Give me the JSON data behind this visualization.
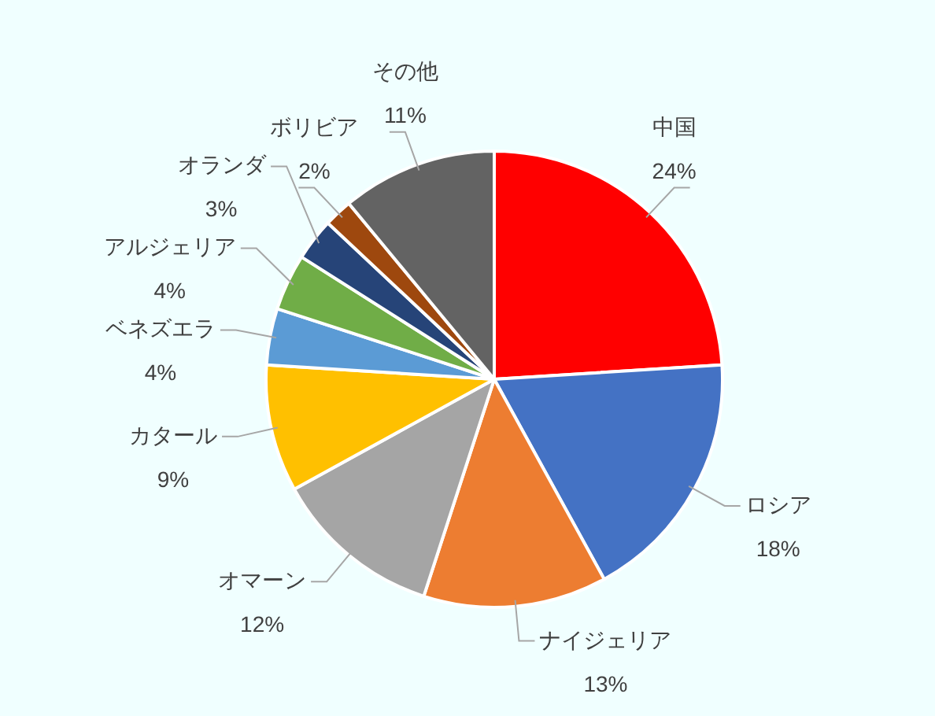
{
  "chart_data": {
    "type": "pie",
    "categories": [
      "中国",
      "ロシア",
      "ナイジェリア",
      "オマーン",
      "カタール",
      "ベネズエラ",
      "アルジェリア",
      "オランダ",
      "ボリビア",
      "その他"
    ],
    "values": [
      24,
      18,
      13,
      12,
      9,
      4,
      4,
      3,
      2,
      11
    ],
    "value_labels": [
      "24%",
      "18%",
      "13%",
      "12%",
      "9%",
      "4%",
      "4%",
      "3%",
      "2%",
      "11%"
    ],
    "colors": [
      "#ff0000",
      "#4472c4",
      "#ed7d31",
      "#a5a5a5",
      "#ffc000",
      "#5b9bd5",
      "#70ad47",
      "#264478",
      "#9e480e",
      "#636363"
    ]
  }
}
